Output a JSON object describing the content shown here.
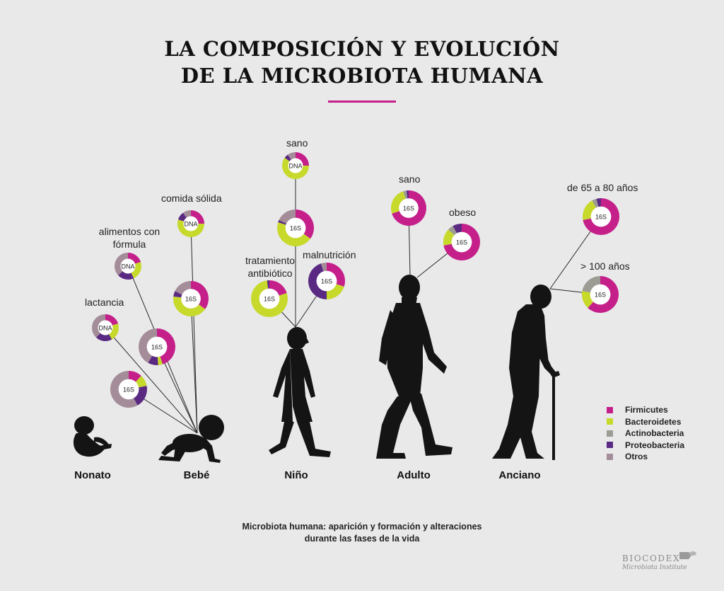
{
  "title_lines": [
    "LA COMPOSICIÓN Y EVOLUCIÓN",
    "DE LA MICROBIOTA HUMANA"
  ],
  "colors": {
    "Firmicutes": "#c51f8a",
    "Bacteroidetes": "#c7d92b",
    "Actinobacteria": "#9c9c94",
    "Proteobacteria": "#5a2a83",
    "Otros": "#a48d98",
    "accent": "#c51f8a",
    "silhouette": "#141414"
  },
  "legend": [
    {
      "name": "Firmicutes",
      "color": "#c51f8a"
    },
    {
      "name": "Bacteroidetes",
      "color": "#c7d92b"
    },
    {
      "name": "Actinobacteria",
      "color": "#9c9c94"
    },
    {
      "name": "Proteobacteria",
      "color": "#5a2a83"
    },
    {
      "name": "Otros",
      "color": "#a48d98"
    }
  ],
  "stages": [
    "Nonato",
    "Bebé",
    "Niño",
    "Adulto",
    "Anciano"
  ],
  "rings": [
    {
      "id": "bebe-lactancia",
      "label": "lactancia",
      "method": "DNA",
      "composition": {
        "Firmicutes": 20,
        "Bacteroidetes": 22,
        "Actinobacteria": 0,
        "Proteobacteria": 20,
        "Otros": 38
      }
    },
    {
      "id": "bebe-lactancia-16s",
      "label": "",
      "method": "16S",
      "composition": {
        "Firmicutes": 12,
        "Bacteroidetes": 10,
        "Actinobacteria": 0,
        "Proteobacteria": 20,
        "Otros": 58
      }
    },
    {
      "id": "bebe-formula",
      "label": "alimentos con fórmula",
      "method": "DNA",
      "composition": {
        "Firmicutes": 20,
        "Bacteroidetes": 23,
        "Actinobacteria": 0,
        "Proteobacteria": 20,
        "Otros": 37
      }
    },
    {
      "id": "bebe-formula-16s",
      "label": "",
      "method": "16S",
      "composition": {
        "Firmicutes": 45,
        "Bacteroidetes": 4,
        "Actinobacteria": 0,
        "Proteobacteria": 9,
        "Otros": 42
      }
    },
    {
      "id": "bebe-solida",
      "label": "comida sólida",
      "method": "DNA",
      "composition": {
        "Firmicutes": 25,
        "Bacteroidetes": 55,
        "Actinobacteria": 0,
        "Proteobacteria": 10,
        "Otros": 10
      }
    },
    {
      "id": "bebe-solida-16s",
      "label": "",
      "method": "16S",
      "composition": {
        "Firmicutes": 35,
        "Bacteroidetes": 42,
        "Actinobacteria": 0,
        "Proteobacteria": 5,
        "Otros": 18
      }
    },
    {
      "id": "nino-sano",
      "label": "sano",
      "method": "DNA",
      "composition": {
        "Firmicutes": 25,
        "Bacteroidetes": 60,
        "Actinobacteria": 0,
        "Proteobacteria": 5,
        "Otros": 10
      }
    },
    {
      "id": "nino-sano-16s",
      "label": "",
      "method": "16S",
      "composition": {
        "Firmicutes": 35,
        "Bacteroidetes": 45,
        "Actinobacteria": 0,
        "Proteobacteria": 2,
        "Otros": 18
      }
    },
    {
      "id": "nino-antibiotico",
      "label": "tratamiento antibiótico",
      "method": "16S",
      "composition": {
        "Firmicutes": 20,
        "Bacteroidetes": 78,
        "Actinobacteria": 0,
        "Proteobacteria": 2,
        "Otros": 0
      }
    },
    {
      "id": "nino-malnutricion",
      "label": "malnutrición",
      "method": "16S",
      "composition": {
        "Firmicutes": 30,
        "Bacteroidetes": 20,
        "Actinobacteria": 0,
        "Proteobacteria": 45,
        "Otros": 5
      }
    },
    {
      "id": "adulto-sano",
      "label": "sano",
      "method": "16S",
      "composition": {
        "Firmicutes": 70,
        "Bacteroidetes": 25,
        "Actinobacteria": 3,
        "Proteobacteria": 2,
        "Otros": 0
      }
    },
    {
      "id": "adulto-obeso",
      "label": "obeso",
      "method": "16S",
      "composition": {
        "Firmicutes": 72,
        "Bacteroidetes": 15,
        "Actinobacteria": 5,
        "Proteobacteria": 8,
        "Otros": 0
      }
    },
    {
      "id": "anciano-65-80",
      "label": "de 65 a 80 años",
      "method": "16S",
      "composition": {
        "Firmicutes": 72,
        "Bacteroidetes": 20,
        "Actinobacteria": 4,
        "Proteobacteria": 4,
        "Otros": 0
      }
    },
    {
      "id": "anciano-100",
      "label": "> 100 años",
      "method": "16S",
      "composition": {
        "Firmicutes": 62,
        "Bacteroidetes": 16,
        "Actinobacteria": 22,
        "Proteobacteria": 0,
        "Otros": 0
      }
    }
  ],
  "caption_lines": [
    "Microbiota humana: aparición y formación y alteraciones",
    "durante las fases de la vida"
  ],
  "logo": {
    "brand": "BIOCODEX",
    "sub": "Microbiota Institute"
  }
}
